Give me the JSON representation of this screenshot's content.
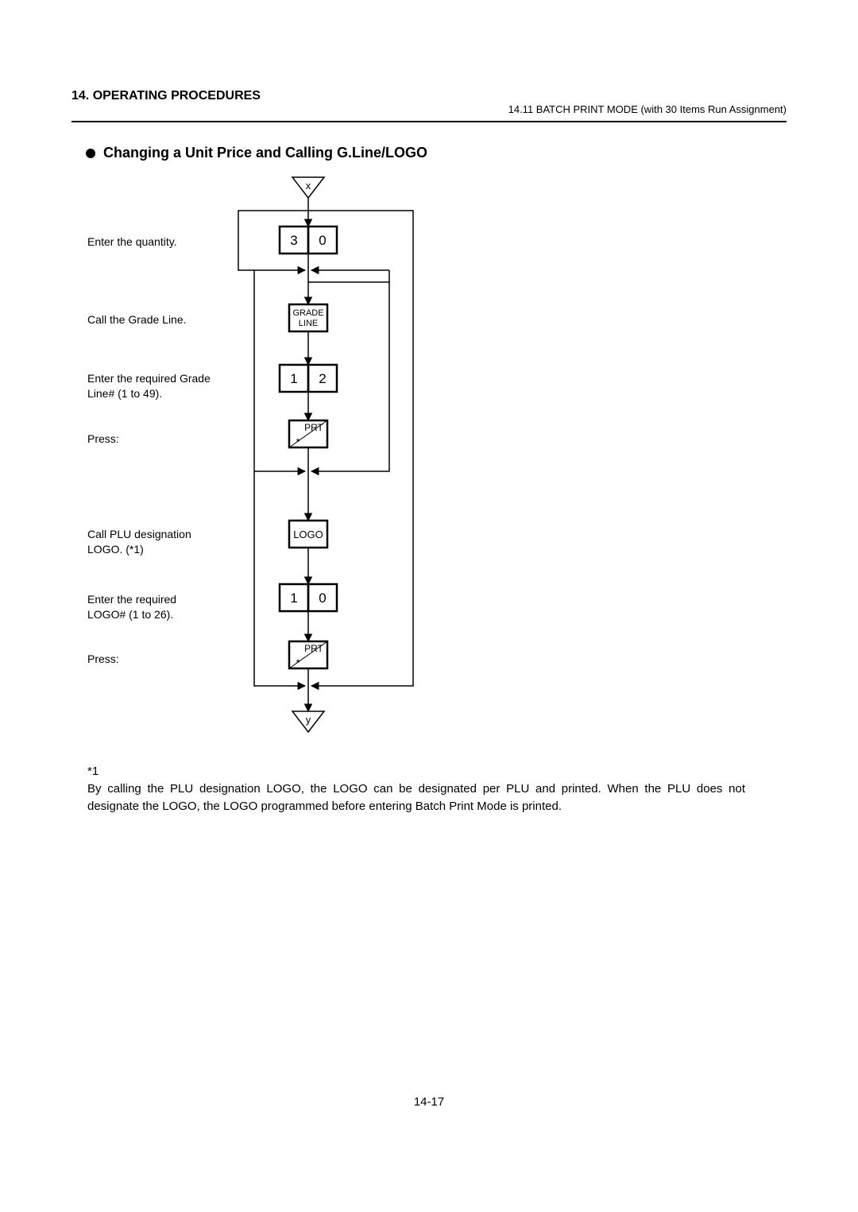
{
  "header": {
    "left": "14. OPERATING PROCEDURES",
    "right": "14.11 BATCH PRINT MODE (with 30 Items Run Assignment)"
  },
  "section": {
    "title": "Changing a Unit Price and Calling G.Line/LOGO"
  },
  "flow": {
    "entry_label": "x",
    "exit_label": "y",
    "steps": [
      {
        "label": "Enter the quantity.",
        "key1": "3",
        "key2": "0"
      },
      {
        "label": "Call the Grade Line.",
        "small_top": "GRADE",
        "small_bottom": "LINE"
      },
      {
        "label": "Enter the required Grade\nLine# (1 to 49).",
        "key1": "1",
        "key2": "2"
      },
      {
        "label": "Press:",
        "prt": "PRT",
        "prt_star": "*"
      },
      {
        "label": "Call PLU designation\nLOGO. (*1)",
        "logo": "LOGO"
      },
      {
        "label": "Enter the required\nLOGO# (1 to 26).",
        "key1": "1",
        "key2": "0"
      },
      {
        "label": "Press:",
        "prt": "PRT",
        "prt_star": "*"
      }
    ]
  },
  "footnote": {
    "marker": "*1",
    "text": "By calling the PLU designation LOGO, the LOGO can be designated per PLU and printed. When the PLU does not designate the LOGO, the LOGO programmed before entering Batch Print Mode is printed."
  },
  "page_number": "14-17",
  "style": {
    "box_stroke": "#000000",
    "box_stroke_width": 2.5,
    "line_stroke": "#000000",
    "line_width": 1.5,
    "font_family": "Arial, Helvetica, sans-serif"
  }
}
